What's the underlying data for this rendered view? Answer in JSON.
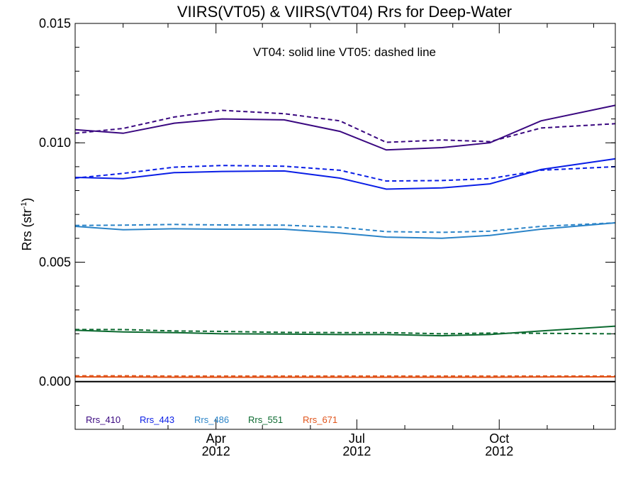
{
  "chart_data": {
    "type": "line",
    "title": "VIIRS(VT05) & VIIRS(VT04)  Rrs for Deep-Water",
    "annotation": "VT04: solid line   VT05: dashed line",
    "ylabel_main": "Rrs (str",
    "ylabel_sup": "-1",
    "ylabel_close": ")",
    "xlabel": "",
    "ylim": [
      -0.002,
      0.015
    ],
    "xlim": [
      "2012-01-01",
      "2012-12-15"
    ],
    "grid": false,
    "legend_placement": "bottom-left",
    "yticks": [
      {
        "value": 0.0,
        "label": "0.000"
      },
      {
        "value": 0.005,
        "label": "0.005"
      },
      {
        "value": 0.01,
        "label": "0.010"
      },
      {
        "value": 0.015,
        "label": "0.015"
      }
    ],
    "xticks": [
      {
        "date": "2012-04-01",
        "label1": "Apr",
        "label2": "2012"
      },
      {
        "date": "2012-07-01",
        "label1": "Jul",
        "label2": "2012"
      },
      {
        "date": "2012-10-01",
        "label1": "Oct",
        "label2": "2012"
      }
    ],
    "x": [
      "2012-01-01",
      "2012-02-01",
      "2012-03-05",
      "2012-04-05",
      "2012-05-15",
      "2012-06-20",
      "2012-07-20",
      "2012-08-25",
      "2012-09-25",
      "2012-10-28",
      "2012-12-15"
    ],
    "series": [
      {
        "name": "Rrs_410",
        "color": "#3a0880",
        "vt04": [
          0.01055,
          0.0104,
          0.01082,
          0.011,
          0.01096,
          0.01048,
          0.0097,
          0.0098,
          0.01,
          0.01092,
          0.01157
        ],
        "vt05": [
          0.0104,
          0.0106,
          0.01108,
          0.01136,
          0.01122,
          0.01092,
          0.01002,
          0.01012,
          0.01005,
          0.01062,
          0.0108
        ]
      },
      {
        "name": "Rrs_443",
        "color": "#0a1ee6",
        "vt04": [
          0.00855,
          0.0085,
          0.00875,
          0.0088,
          0.00882,
          0.00852,
          0.00806,
          0.00811,
          0.00828,
          0.00888,
          0.00933
        ],
        "vt05": [
          0.00852,
          0.00872,
          0.00898,
          0.00905,
          0.00902,
          0.00885,
          0.0084,
          0.00842,
          0.0085,
          0.00885,
          0.009
        ]
      },
      {
        "name": "Rrs_486",
        "color": "#2b84c8",
        "vt04": [
          0.0065,
          0.00636,
          0.0064,
          0.00638,
          0.00638,
          0.00622,
          0.00605,
          0.006,
          0.00612,
          0.00638,
          0.00665
        ],
        "vt05": [
          0.00654,
          0.00655,
          0.00658,
          0.00656,
          0.00655,
          0.00646,
          0.00628,
          0.00625,
          0.0063,
          0.0065,
          0.00665
        ]
      },
      {
        "name": "Rrs_551",
        "color": "#0c6a30",
        "vt04": [
          0.00215,
          0.00208,
          0.00205,
          0.002,
          0.00199,
          0.00197,
          0.00197,
          0.00192,
          0.00197,
          0.00212,
          0.00232
        ],
        "vt05": [
          0.00218,
          0.00218,
          0.00212,
          0.0021,
          0.00206,
          0.00205,
          0.00205,
          0.002,
          0.00203,
          0.00202,
          0.002
        ]
      },
      {
        "name": "Rrs_671",
        "color": "#e0541b",
        "vt04": [
          0.0002,
          0.00019,
          0.00018,
          0.00018,
          0.00018,
          0.00018,
          0.00018,
          0.00018,
          0.00018,
          0.00019,
          0.0002
        ],
        "vt05": [
          0.00024,
          0.00024,
          0.00023,
          0.00023,
          0.00023,
          0.00023,
          0.00023,
          0.00023,
          0.00023,
          0.00023,
          0.00023
        ]
      }
    ],
    "zero_line": 0.0
  }
}
